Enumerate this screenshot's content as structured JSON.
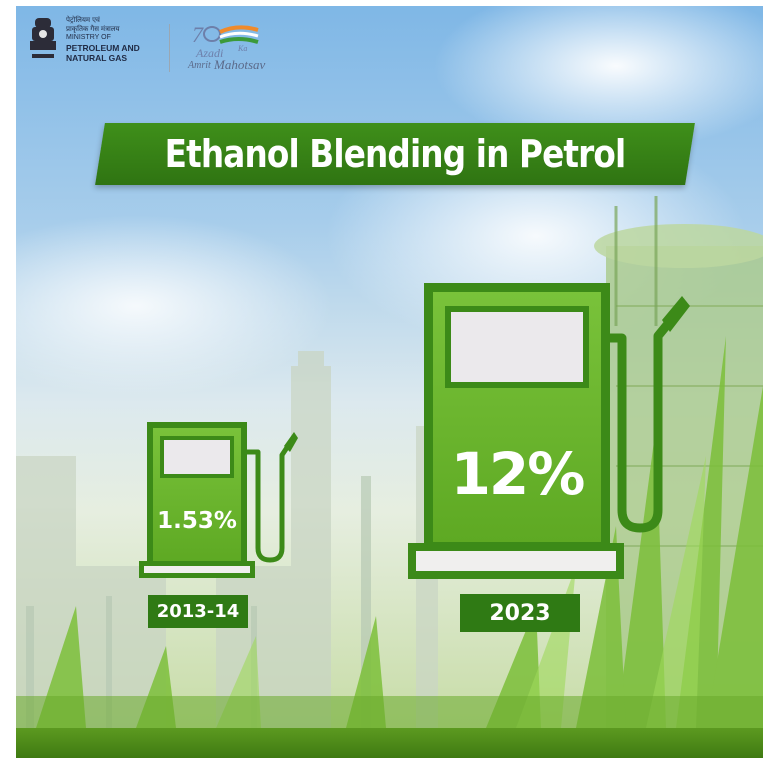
{
  "header": {
    "ministry_hindi_line1": "पेट्रोलियम एवं",
    "ministry_hindi_line2": "प्राकृतिक गैस मंत्रालय",
    "ministry_line1": "MINISTRY OF",
    "ministry_line2": "PETROLEUM AND",
    "ministry_line3": "NATURAL GAS",
    "azadi_azadi": "Azadi",
    "azadi_ka": "Ka",
    "azadi_amrit": "Amrit",
    "azadi_mahotsav": "Mahotsav"
  },
  "colors": {
    "banner_green": "#3f8f1a",
    "pump_green": "#6cb82f",
    "pump_border": "#3c8a18",
    "year_tag_green": "#2f7a14",
    "screen_grey": "#ebe9ec"
  },
  "chart_data": {
    "type": "bar",
    "title": "Ethanol Blending in Petrol",
    "categories": [
      "2013-14",
      "2023"
    ],
    "values": [
      1.53,
      12
    ],
    "value_labels": [
      "1.53%",
      "12%"
    ],
    "unit": "%",
    "encoding": "fuel-pump pictograms sized by value"
  }
}
